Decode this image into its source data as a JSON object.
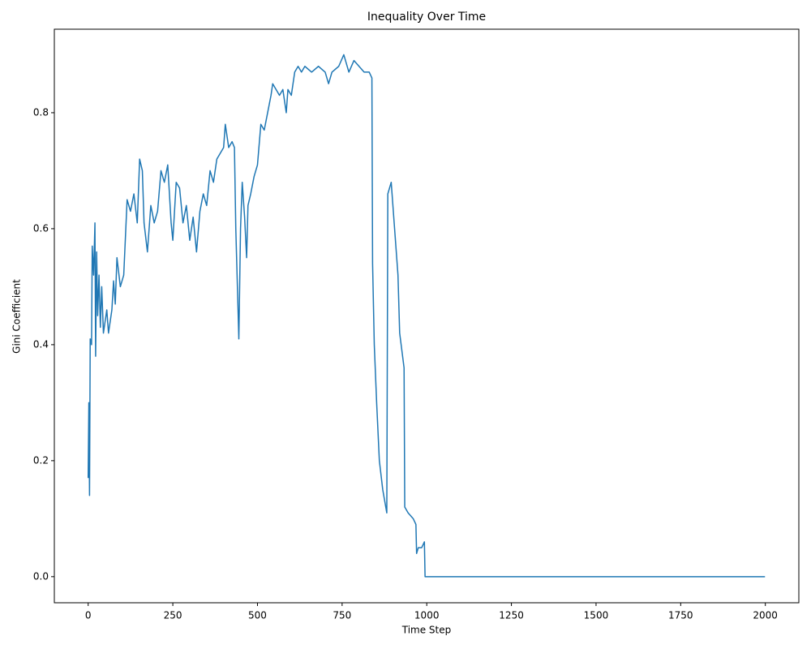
{
  "chart_data": {
    "type": "line",
    "title": "Inequality Over Time",
    "xlabel": "Time Step",
    "ylabel": "Gini Coefficient",
    "x": [
      0,
      2,
      4,
      6,
      10,
      12,
      16,
      20,
      22,
      25,
      28,
      32,
      36,
      40,
      45,
      55,
      60,
      70,
      75,
      80,
      85,
      95,
      105,
      115,
      125,
      135,
      145,
      152,
      160,
      165,
      175,
      185,
      195,
      205,
      215,
      225,
      235,
      245,
      250,
      260,
      270,
      280,
      290,
      300,
      310,
      320,
      330,
      340,
      350,
      360,
      370,
      380,
      390,
      400,
      405,
      415,
      425,
      432,
      436,
      445,
      450,
      455,
      462,
      468,
      472,
      480,
      490,
      500,
      510,
      520,
      530,
      540,
      545,
      555,
      565,
      575,
      585,
      590,
      600,
      610,
      620,
      630,
      640,
      660,
      680,
      700,
      710,
      720,
      740,
      755,
      770,
      785,
      800,
      815,
      830,
      838,
      840,
      845,
      852,
      860,
      870,
      882,
      885,
      895,
      905,
      915,
      920,
      933,
      935,
      945,
      960,
      968,
      970,
      975,
      985,
      993,
      995,
      1999
    ],
    "series": [
      {
        "name": "Gini",
        "color": "#1f77b4",
        "values": [
          0.17,
          0.3,
          0.14,
          0.41,
          0.4,
          0.57,
          0.52,
          0.61,
          0.38,
          0.56,
          0.45,
          0.52,
          0.43,
          0.5,
          0.42,
          0.46,
          0.42,
          0.46,
          0.51,
          0.47,
          0.55,
          0.5,
          0.52,
          0.65,
          0.63,
          0.66,
          0.61,
          0.72,
          0.7,
          0.61,
          0.56,
          0.64,
          0.61,
          0.63,
          0.7,
          0.68,
          0.71,
          0.61,
          0.58,
          0.68,
          0.67,
          0.61,
          0.64,
          0.58,
          0.62,
          0.56,
          0.63,
          0.66,
          0.64,
          0.7,
          0.68,
          0.72,
          0.73,
          0.74,
          0.78,
          0.74,
          0.75,
          0.74,
          0.6,
          0.41,
          0.6,
          0.68,
          0.62,
          0.55,
          0.64,
          0.66,
          0.69,
          0.71,
          0.78,
          0.77,
          0.8,
          0.83,
          0.85,
          0.84,
          0.83,
          0.84,
          0.8,
          0.84,
          0.83,
          0.87,
          0.88,
          0.87,
          0.88,
          0.87,
          0.88,
          0.87,
          0.85,
          0.87,
          0.88,
          0.9,
          0.87,
          0.89,
          0.88,
          0.87,
          0.87,
          0.86,
          0.54,
          0.4,
          0.3,
          0.2,
          0.15,
          0.11,
          0.66,
          0.68,
          0.6,
          0.52,
          0.42,
          0.36,
          0.12,
          0.11,
          0.1,
          0.09,
          0.04,
          0.05,
          0.05,
          0.06,
          0,
          0
        ]
      }
    ],
    "xlim": [
      -99.95,
      2098.95
    ],
    "ylim": [
      -0.045,
      0.944
    ],
    "xticks": [
      0,
      250,
      500,
      750,
      1000,
      1250,
      1500,
      1750,
      2000
    ],
    "yticks": [
      {
        "value": 0,
        "label": "0.0"
      },
      0.2,
      0.4,
      0.6,
      0.8
    ]
  }
}
